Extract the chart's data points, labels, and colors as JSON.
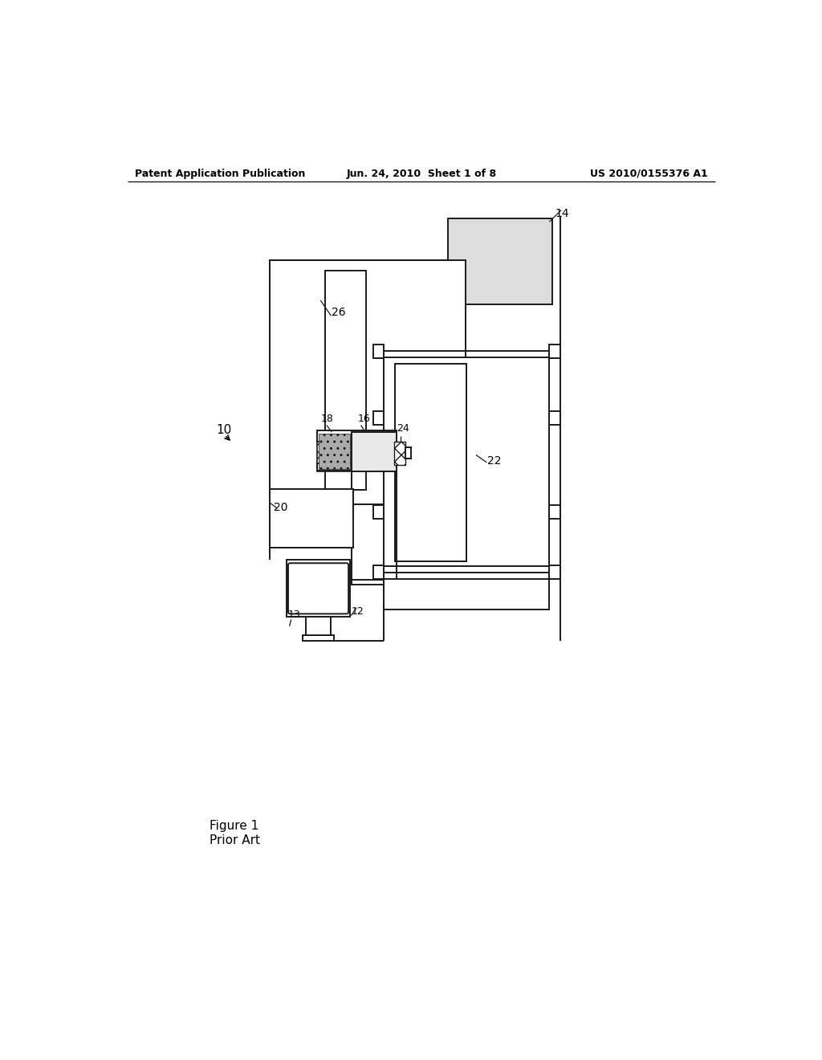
{
  "bg_color": "#ffffff",
  "header_left": "Patent Application Publication",
  "header_center": "Jun. 24, 2010  Sheet 1 of 8",
  "header_right": "US 2010/0155376 A1",
  "footer_fig": "Figure 1",
  "footer_sub": "Prior Art",
  "lc": "#1a1a1a",
  "lw": 1.4
}
